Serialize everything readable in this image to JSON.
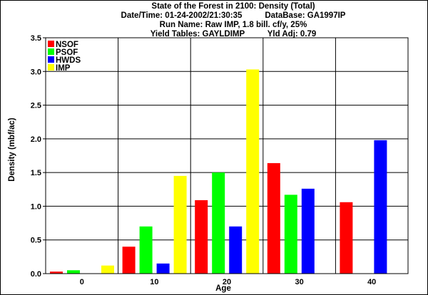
{
  "title_lines": [
    "State of the Forest in 2100: Density (Total)",
    "Date/Time: 01-24-2002/21:30:35          DataBase: GA1997IP",
    "Run Name: Raw IMP, 1.8 bill. cf/y, 25%",
    "Yield Tables: GAYLDIMP          Yld Adj: 0.79"
  ],
  "chart_data": {
    "type": "bar",
    "title": "State of the Forest in 2100: Density (Total)",
    "xlabel": "Age",
    "ylabel": "Density (mbf/ac)",
    "categories": [
      "0",
      "10",
      "20",
      "30",
      "40"
    ],
    "ylim": [
      0,
      3.5
    ],
    "yticks": [
      "0.0",
      "0.5",
      "1.0",
      "1.5",
      "2.0",
      "2.5",
      "3.0",
      "3.5"
    ],
    "grid": true,
    "legend_position": "top-left",
    "series": [
      {
        "name": "NSOF",
        "color": "#ff0000",
        "values": [
          0.03,
          0.4,
          1.09,
          1.64,
          1.06
        ]
      },
      {
        "name": "PSOF",
        "color": "#00ff00",
        "values": [
          0.05,
          0.7,
          1.5,
          1.17,
          0
        ]
      },
      {
        "name": "HWDS",
        "color": "#0000ff",
        "values": [
          0,
          0.15,
          0.7,
          1.26,
          1.98
        ]
      },
      {
        "name": "IMP",
        "color": "#ffff00",
        "values": [
          0.12,
          1.45,
          3.03,
          0,
          0
        ]
      }
    ]
  }
}
